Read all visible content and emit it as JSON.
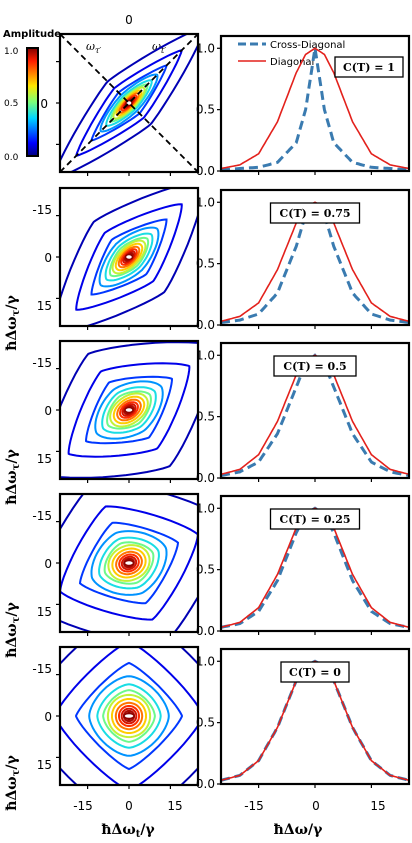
{
  "colorbar": {
    "title": "Amplitude",
    "ticks": [
      "1.0",
      "0.5",
      "0.0"
    ]
  },
  "top_axis_tick": "0",
  "top_left_y_tick": "0",
  "omega_labels": [
    "ω",
    "τ′",
    "ω",
    "t′"
  ],
  "legend": {
    "entries": [
      "Cross-Diagonal",
      "Diagonal"
    ],
    "colors": [
      "#3a7bb0",
      "#e3211c"
    ]
  },
  "left_axis": {
    "ylabel": "ħΔω",
    "ylabel_sub": "τ",
    "ylabel_tail": "/γ",
    "xlabel": "ħΔω",
    "xlabel_sub": "t",
    "xlabel_tail": "/γ",
    "y_ticks": [
      "-15",
      "0",
      "15"
    ],
    "x_ticks": [
      "-15",
      "0",
      "15"
    ]
  },
  "right_axis": {
    "xlabel": "ħΔω/γ",
    "x_ticks": [
      "-15",
      "0",
      "15"
    ],
    "y_ticks": [
      "0.0",
      "0.5",
      "1.0"
    ]
  },
  "chart_data": [
    {
      "type": "line",
      "title": "",
      "annotation": "C(T) = 1",
      "xlim": [
        -25,
        25
      ],
      "ylim": [
        0,
        1.1
      ],
      "x": [
        -25,
        -20,
        -15,
        -10,
        -5,
        -2.5,
        0,
        2.5,
        5,
        10,
        15,
        20,
        25
      ],
      "series": [
        {
          "name": "Cross-Diagonal",
          "values": [
            0.01,
            0.02,
            0.03,
            0.07,
            0.23,
            0.5,
            1.0,
            0.5,
            0.23,
            0.07,
            0.03,
            0.02,
            0.01
          ]
        },
        {
          "name": "Diagonal",
          "values": [
            0.02,
            0.05,
            0.14,
            0.4,
            0.8,
            0.95,
            1.0,
            0.95,
            0.8,
            0.4,
            0.14,
            0.05,
            0.02
          ]
        }
      ]
    },
    {
      "type": "line",
      "title": "",
      "annotation": "C(T) = 0.75",
      "xlim": [
        -25,
        25
      ],
      "ylim": [
        0,
        1.1
      ],
      "x": [
        -25,
        -20,
        -15,
        -10,
        -5,
        -2.5,
        0,
        2.5,
        5,
        10,
        15,
        20,
        25
      ],
      "series": [
        {
          "name": "Cross-Diagonal",
          "values": [
            0.02,
            0.04,
            0.09,
            0.26,
            0.64,
            0.9,
            1.0,
            0.9,
            0.64,
            0.26,
            0.09,
            0.04,
            0.02
          ]
        },
        {
          "name": "Diagonal",
          "values": [
            0.03,
            0.07,
            0.18,
            0.45,
            0.83,
            0.96,
            1.0,
            0.96,
            0.83,
            0.45,
            0.18,
            0.07,
            0.03
          ]
        }
      ]
    },
    {
      "type": "line",
      "title": "",
      "annotation": "C(T) = 0.5",
      "xlim": [
        -25,
        25
      ],
      "ylim": [
        0,
        1.1
      ],
      "x": [
        -25,
        -20,
        -15,
        -10,
        -5,
        -2.5,
        0,
        2.5,
        5,
        10,
        15,
        20,
        25
      ],
      "series": [
        {
          "name": "Cross-Diagonal",
          "values": [
            0.02,
            0.05,
            0.13,
            0.36,
            0.74,
            0.93,
            1.0,
            0.93,
            0.74,
            0.36,
            0.13,
            0.05,
            0.02
          ]
        },
        {
          "name": "Diagonal",
          "values": [
            0.03,
            0.07,
            0.19,
            0.46,
            0.84,
            0.96,
            1.0,
            0.96,
            0.84,
            0.46,
            0.19,
            0.07,
            0.03
          ]
        }
      ]
    },
    {
      "type": "line",
      "title": "",
      "annotation": "C(T) = 0.25",
      "xlim": [
        -25,
        25
      ],
      "ylim": [
        0,
        1.1
      ],
      "x": [
        -25,
        -20,
        -15,
        -10,
        -5,
        -2.5,
        0,
        2.5,
        5,
        10,
        15,
        20,
        25
      ],
      "series": [
        {
          "name": "Cross-Diagonal",
          "values": [
            0.03,
            0.06,
            0.16,
            0.41,
            0.8,
            0.95,
            1.0,
            0.95,
            0.8,
            0.41,
            0.16,
            0.06,
            0.03
          ]
        },
        {
          "name": "Diagonal",
          "values": [
            0.03,
            0.07,
            0.19,
            0.46,
            0.84,
            0.96,
            1.0,
            0.96,
            0.84,
            0.46,
            0.19,
            0.07,
            0.03
          ]
        }
      ]
    },
    {
      "type": "line",
      "title": "",
      "annotation": "C(T) = 0",
      "xlim": [
        -25,
        25
      ],
      "ylim": [
        0,
        1.1
      ],
      "x": [
        -25,
        -20,
        -15,
        -10,
        -5,
        -2.5,
        0,
        2.5,
        5,
        10,
        15,
        20,
        25
      ],
      "series": [
        {
          "name": "Cross-Diagonal",
          "values": [
            0.03,
            0.07,
            0.19,
            0.46,
            0.84,
            0.96,
            1.0,
            0.96,
            0.84,
            0.46,
            0.19,
            0.07,
            0.03
          ]
        },
        {
          "name": "Diagonal",
          "values": [
            0.03,
            0.07,
            0.19,
            0.46,
            0.84,
            0.96,
            1.0,
            0.96,
            0.84,
            0.46,
            0.19,
            0.07,
            0.03
          ]
        }
      ]
    },
    {
      "type": "heatmap",
      "title": "",
      "annotation": "C(T) = 1",
      "xlim": [
        -25,
        25
      ],
      "ylim": [
        25,
        -25
      ],
      "correlation": 1.0,
      "diagonal_lines": true
    },
    {
      "type": "heatmap",
      "title": "",
      "annotation": "C(T) = 0.75",
      "xlim": [
        -25,
        25
      ],
      "ylim": [
        25,
        -25
      ],
      "correlation": 0.75
    },
    {
      "type": "heatmap",
      "title": "",
      "annotation": "C(T) = 0.5",
      "xlim": [
        -25,
        25
      ],
      "ylim": [
        25,
        -25
      ],
      "correlation": 0.5
    },
    {
      "type": "heatmap",
      "title": "",
      "annotation": "C(T) = 0.25",
      "xlim": [
        -25,
        25
      ],
      "ylim": [
        25,
        -25
      ],
      "correlation": 0.25
    },
    {
      "type": "heatmap",
      "title": "",
      "annotation": "C(T) = 0",
      "xlim": [
        -25,
        25
      ],
      "ylim": [
        25,
        -25
      ],
      "correlation": 0.0
    }
  ]
}
